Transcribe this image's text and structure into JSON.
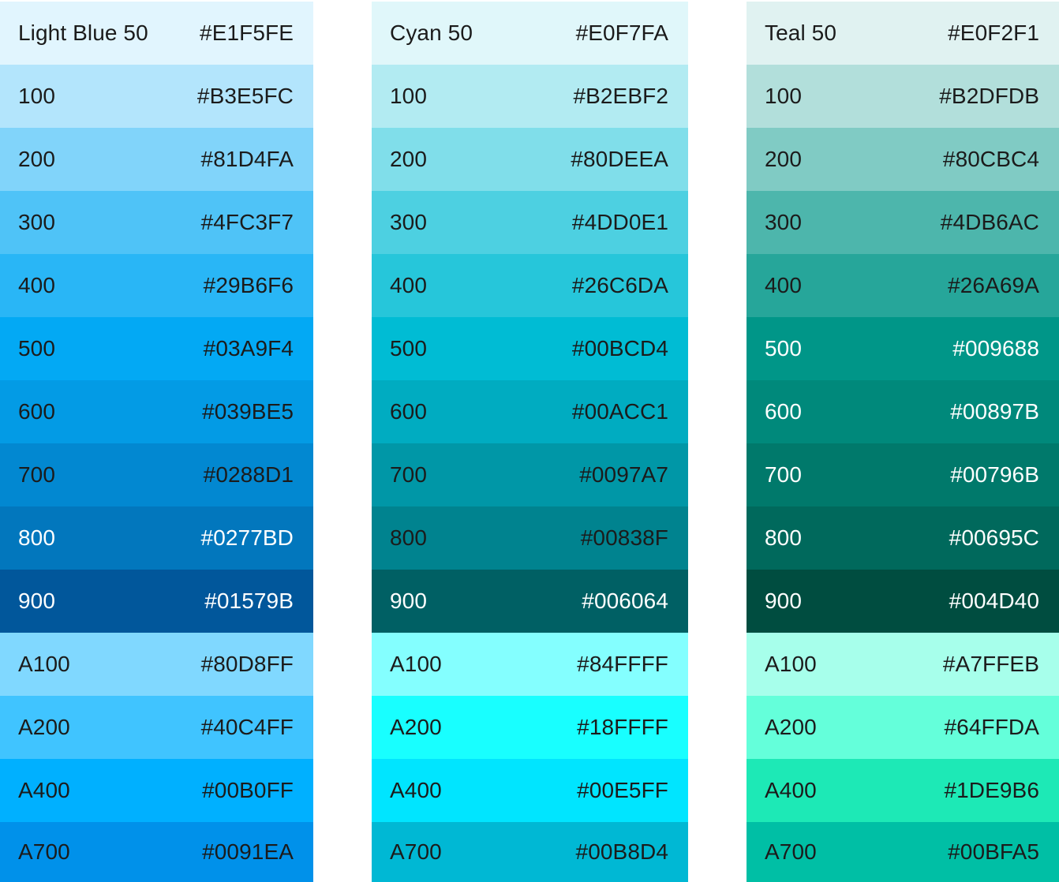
{
  "palettes": [
    {
      "name": "Light Blue",
      "swatches": [
        {
          "label": "Light Blue 50",
          "hex": "#E1F5FE",
          "text": "dark"
        },
        {
          "label": "100",
          "hex": "#B3E5FC",
          "text": "dark"
        },
        {
          "label": "200",
          "hex": "#81D4FA",
          "text": "dark"
        },
        {
          "label": "300",
          "hex": "#4FC3F7",
          "text": "dark"
        },
        {
          "label": "400",
          "hex": "#29B6F6",
          "text": "dark"
        },
        {
          "label": "500",
          "hex": "#03A9F4",
          "text": "dark"
        },
        {
          "label": "600",
          "hex": "#039BE5",
          "text": "dark"
        },
        {
          "label": "700",
          "hex": "#0288D1",
          "text": "dark"
        },
        {
          "label": "800",
          "hex": "#0277BD",
          "text": "light"
        },
        {
          "label": "900",
          "hex": "#01579B",
          "text": "light"
        },
        {
          "label": "A100",
          "hex": "#80D8FF",
          "text": "dark"
        },
        {
          "label": "A200",
          "hex": "#40C4FF",
          "text": "dark"
        },
        {
          "label": "A400",
          "hex": "#00B0FF",
          "text": "dark"
        },
        {
          "label": "A700",
          "hex": "#0091EA",
          "text": "dark"
        }
      ]
    },
    {
      "name": "Cyan",
      "swatches": [
        {
          "label": "Cyan 50",
          "hex": "#E0F7FA",
          "text": "dark"
        },
        {
          "label": "100",
          "hex": "#B2EBF2",
          "text": "dark"
        },
        {
          "label": "200",
          "hex": "#80DEEA",
          "text": "dark"
        },
        {
          "label": "300",
          "hex": "#4DD0E1",
          "text": "dark"
        },
        {
          "label": "400",
          "hex": "#26C6DA",
          "text": "dark"
        },
        {
          "label": "500",
          "hex": "#00BCD4",
          "text": "dark"
        },
        {
          "label": "600",
          "hex": "#00ACC1",
          "text": "dark"
        },
        {
          "label": "700",
          "hex": "#0097A7",
          "text": "dark"
        },
        {
          "label": "800",
          "hex": "#00838F",
          "text": "dark"
        },
        {
          "label": "900",
          "hex": "#006064",
          "text": "light"
        },
        {
          "label": "A100",
          "hex": "#84FFFF",
          "text": "dark"
        },
        {
          "label": "A200",
          "hex": "#18FFFF",
          "text": "dark"
        },
        {
          "label": "A400",
          "hex": "#00E5FF",
          "text": "dark"
        },
        {
          "label": "A700",
          "hex": "#00B8D4",
          "text": "dark"
        }
      ]
    },
    {
      "name": "Teal",
      "swatches": [
        {
          "label": "Teal 50",
          "hex": "#E0F2F1",
          "text": "dark"
        },
        {
          "label": "100",
          "hex": "#B2DFDB",
          "text": "dark"
        },
        {
          "label": "200",
          "hex": "#80CBC4",
          "text": "dark"
        },
        {
          "label": "300",
          "hex": "#4DB6AC",
          "text": "dark"
        },
        {
          "label": "400",
          "hex": "#26A69A",
          "text": "dark"
        },
        {
          "label": "500",
          "hex": "#009688",
          "text": "light"
        },
        {
          "label": "600",
          "hex": "#00897B",
          "text": "light"
        },
        {
          "label": "700",
          "hex": "#00796B",
          "text": "light"
        },
        {
          "label": "800",
          "hex": "#00695C",
          "text": "light"
        },
        {
          "label": "900",
          "hex": "#004D40",
          "text": "light"
        },
        {
          "label": "A100",
          "hex": "#A7FFEB",
          "text": "dark"
        },
        {
          "label": "A200",
          "hex": "#64FFDA",
          "text": "dark"
        },
        {
          "label": "A400",
          "hex": "#1DE9B6",
          "text": "dark"
        },
        {
          "label": "A700",
          "hex": "#00BFA5",
          "text": "dark"
        }
      ]
    }
  ]
}
